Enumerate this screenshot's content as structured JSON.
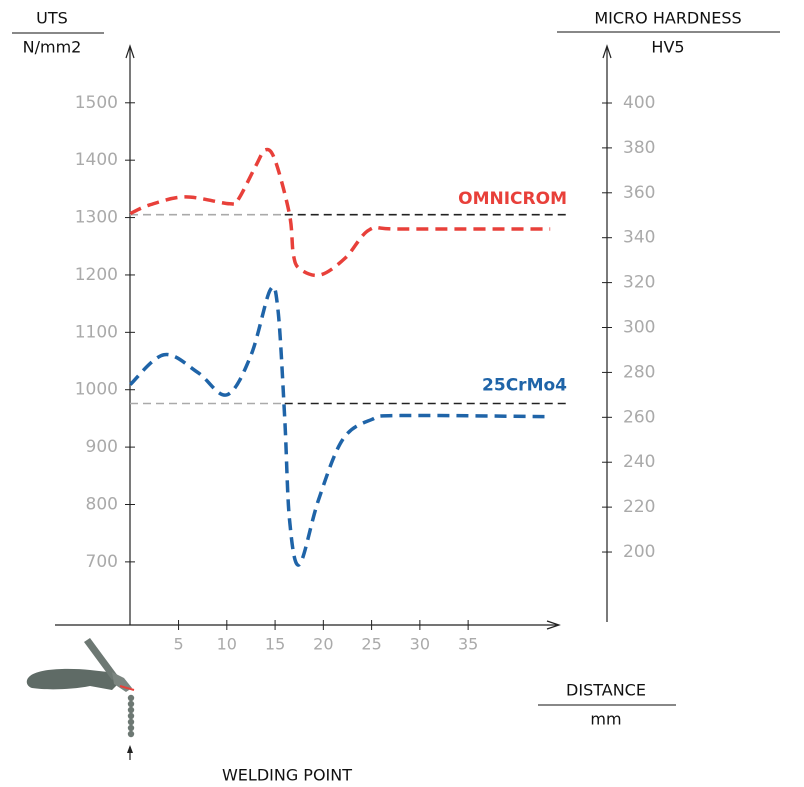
{
  "chart_data": {
    "type": "line",
    "y_title": "UTS",
    "y_unit": "N/mm2",
    "y2_title": "MICRO HARDNESS",
    "y2_unit": "HV5",
    "x_title": "DISTANCE",
    "x_unit": "mm",
    "annotation": "WELDING POINT",
    "xlim": [
      -7.8,
      44
    ],
    "xticks": [
      5,
      10,
      15,
      20,
      25,
      30,
      35
    ],
    "ylim": [
      590,
      1592
    ],
    "yticks": [
      700,
      800,
      900,
      1000,
      1100,
      1200,
      1300,
      1400,
      1500
    ],
    "y2lim": [
      167.5,
      423.6
    ],
    "y2ticks": [
      200,
      220,
      240,
      260,
      280,
      300,
      320,
      340,
      360,
      380,
      400
    ],
    "series": [
      {
        "name": "OMNICROM",
        "color": "#e8403a",
        "x": [
          0,
          2,
          5.7,
          10.3,
          11.2,
          13,
          14,
          15,
          16.5,
          16.9,
          17.6,
          19.7,
          22.3,
          24.8,
          28,
          43.5
        ],
        "values": [
          1307,
          1322,
          1336,
          1324,
          1332,
          1390,
          1418,
          1400,
          1305,
          1235,
          1210,
          1200,
          1230,
          1279,
          1280,
          1280
        ],
        "reference": 1305
      },
      {
        "name": "25CrMo4",
        "color": "#1f64a8",
        "x": [
          0,
          3.5,
          7,
          10,
          12.5,
          14.5,
          15.3,
          16,
          16.5,
          17.5,
          19.5,
          22,
          25,
          28,
          43.5
        ],
        "values": [
          1009,
          1061,
          1030,
          991,
          1060,
          1174,
          1139,
          950,
          773,
          695,
          808,
          913,
          948,
          955,
          953
        ],
        "reference": 976
      }
    ]
  }
}
